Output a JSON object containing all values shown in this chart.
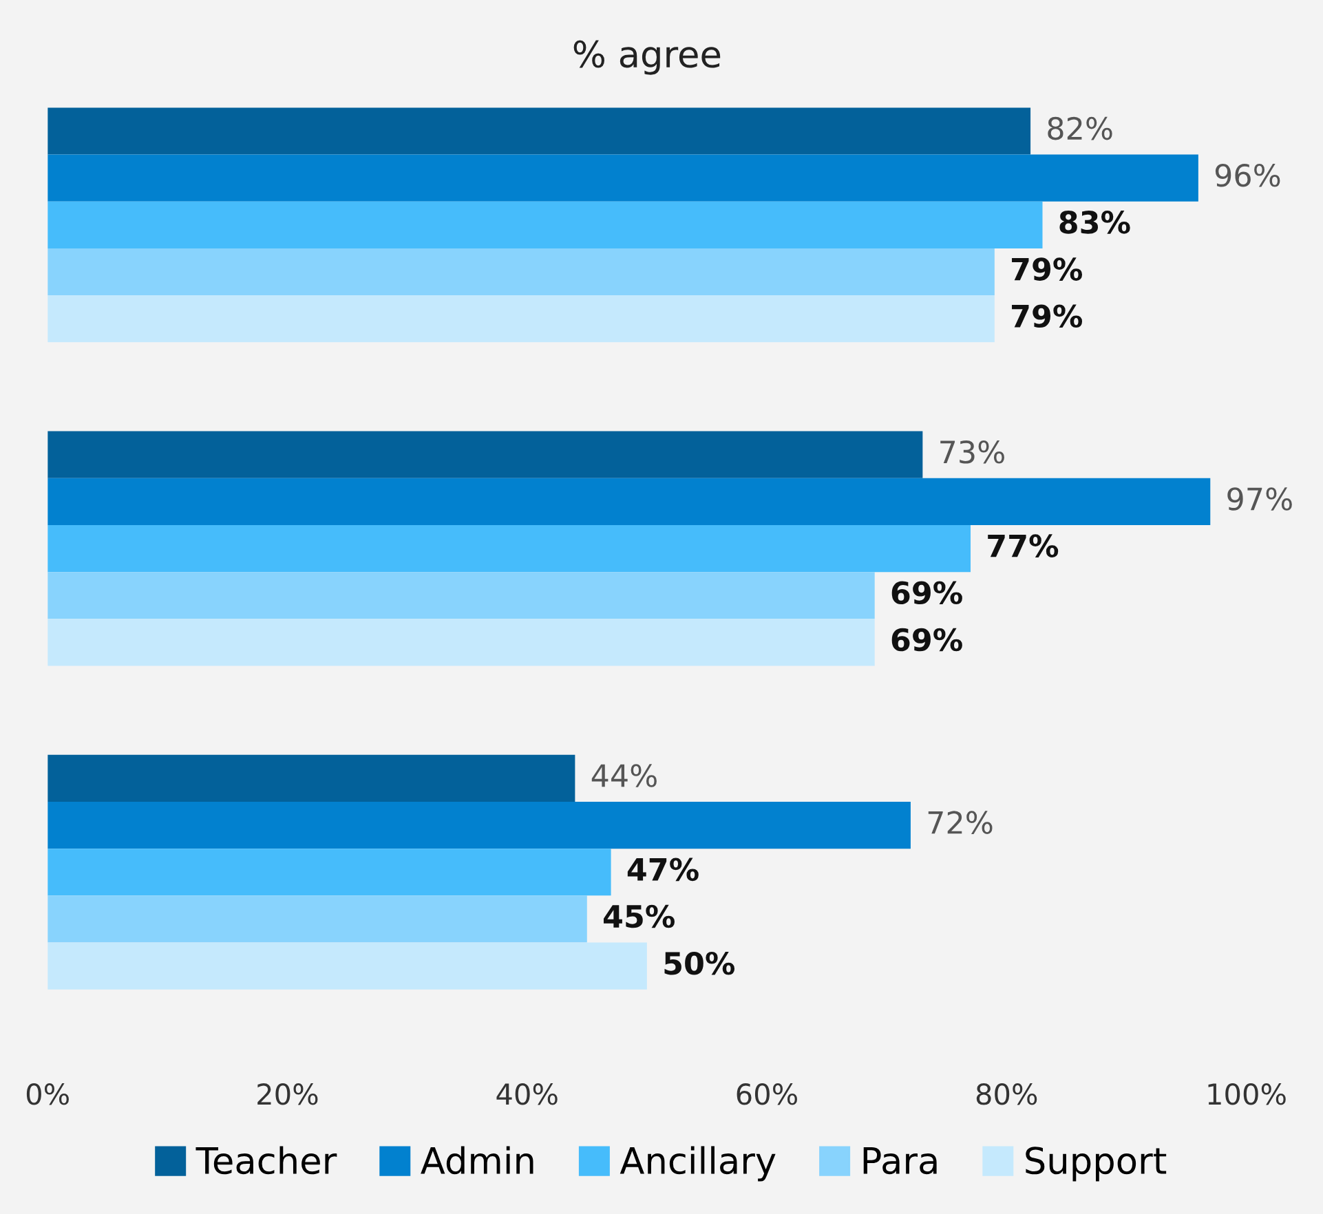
{
  "chart_data": {
    "type": "bar",
    "orientation": "horizontal",
    "title": "% agree",
    "categories": [
      null,
      null,
      null
    ],
    "series": [
      {
        "name": "Teacher",
        "color": "#03619a",
        "values": [
          82,
          73,
          44
        ],
        "value_labels": [
          "82%",
          "73%",
          "44%"
        ]
      },
      {
        "name": "Admin",
        "color": "#0281cf",
        "values": [
          96,
          97,
          72
        ],
        "value_labels": [
          "96%",
          "97%",
          "72%"
        ]
      },
      {
        "name": "Ancillary",
        "color": "#46bcfb",
        "values": [
          83,
          77,
          47
        ],
        "value_labels": [
          "83%",
          "77%",
          "47%"
        ]
      },
      {
        "name": "Para",
        "color": "#88d3fd",
        "values": [
          79,
          69,
          45
        ],
        "value_labels": [
          "79%",
          "69%",
          "45%"
        ]
      },
      {
        "name": "Support",
        "color": "#c5e9fd",
        "values": [
          79,
          69,
          50
        ],
        "value_labels": [
          "79%",
          "69%",
          "50%"
        ]
      }
    ],
    "xlim": [
      0,
      100
    ],
    "xticks": [
      {
        "value": 0,
        "label": "0%"
      },
      {
        "value": 20,
        "label": "20%"
      },
      {
        "value": 40,
        "label": "40%"
      },
      {
        "value": 60,
        "label": "60%"
      },
      {
        "value": 80,
        "label": "80%"
      },
      {
        "value": 100,
        "label": "100%"
      }
    ],
    "grid": false,
    "legend": "bottom"
  }
}
